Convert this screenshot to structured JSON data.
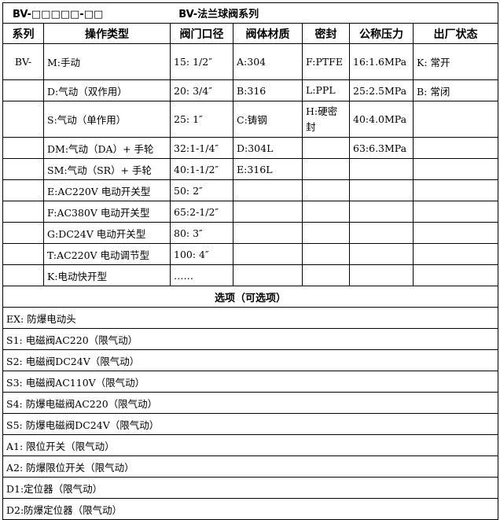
{
  "title": {
    "code": "BV-□□□□□-□□",
    "name": "BV-法兰球阀系列"
  },
  "headers": [
    "系列",
    "操作类型",
    "阀门口径",
    "阀体材质",
    "密封",
    "公称压力",
    "出厂状态"
  ],
  "rows": [
    [
      "BV-",
      "M:手动",
      "15: 1/2″",
      "A:304",
      "F:PTFE",
      "16:1.6MPa",
      "K: 常开"
    ],
    [
      "",
      "D:气动（双作用）",
      "20: 3/4″",
      "B:316",
      "L:PPL",
      "25:2.5MPa",
      "B: 常闭"
    ],
    [
      "",
      "S:气动（单作用）",
      "25: 1″",
      "C:铸钢",
      "H:硬密封",
      "40:4.0MPa",
      ""
    ],
    [
      "",
      "DM:气动（DA）+ 手轮",
      "32:1-1/4″",
      "D:304L",
      "",
      "63:6.3MPa",
      ""
    ],
    [
      "",
      "SM:气动（SR）+ 手轮",
      "40:1-1/2″",
      "E:316L",
      "",
      "",
      ""
    ],
    [
      "",
      "E:AC220V 电动开关型",
      "50: 2″",
      "",
      "",
      "",
      ""
    ],
    [
      "",
      "F:AC380V 电动开关型",
      "65:2-1/2″",
      "",
      "",
      "",
      ""
    ],
    [
      "",
      "G:DC24V 电动开关型",
      "80: 3″",
      "",
      "",
      "",
      ""
    ],
    [
      "",
      "T:AC220V 电动调节型",
      "100: 4″",
      "",
      "",
      "",
      ""
    ],
    [
      "",
      "K:电动快开型",
      "……",
      "",
      "",
      "",
      ""
    ]
  ],
  "options_title": "选项（可选项）",
  "options": [
    "EX: 防爆电动头",
    "S1: 电磁阀AC220（限气动）",
    "S2: 电磁阀DC24V（限气动）",
    "S3: 电磁阀AC110V（限气动）",
    "S4: 防爆电磁阀AC220（限气动）",
    "S5: 防爆电磁阀DC24V（限气动）",
    "A1: 限位开关（限气动）",
    "A2: 防爆限位开关（限气动）",
    "D1:定位器（限气动）",
    "D2:防爆定位器（限气动）"
  ]
}
